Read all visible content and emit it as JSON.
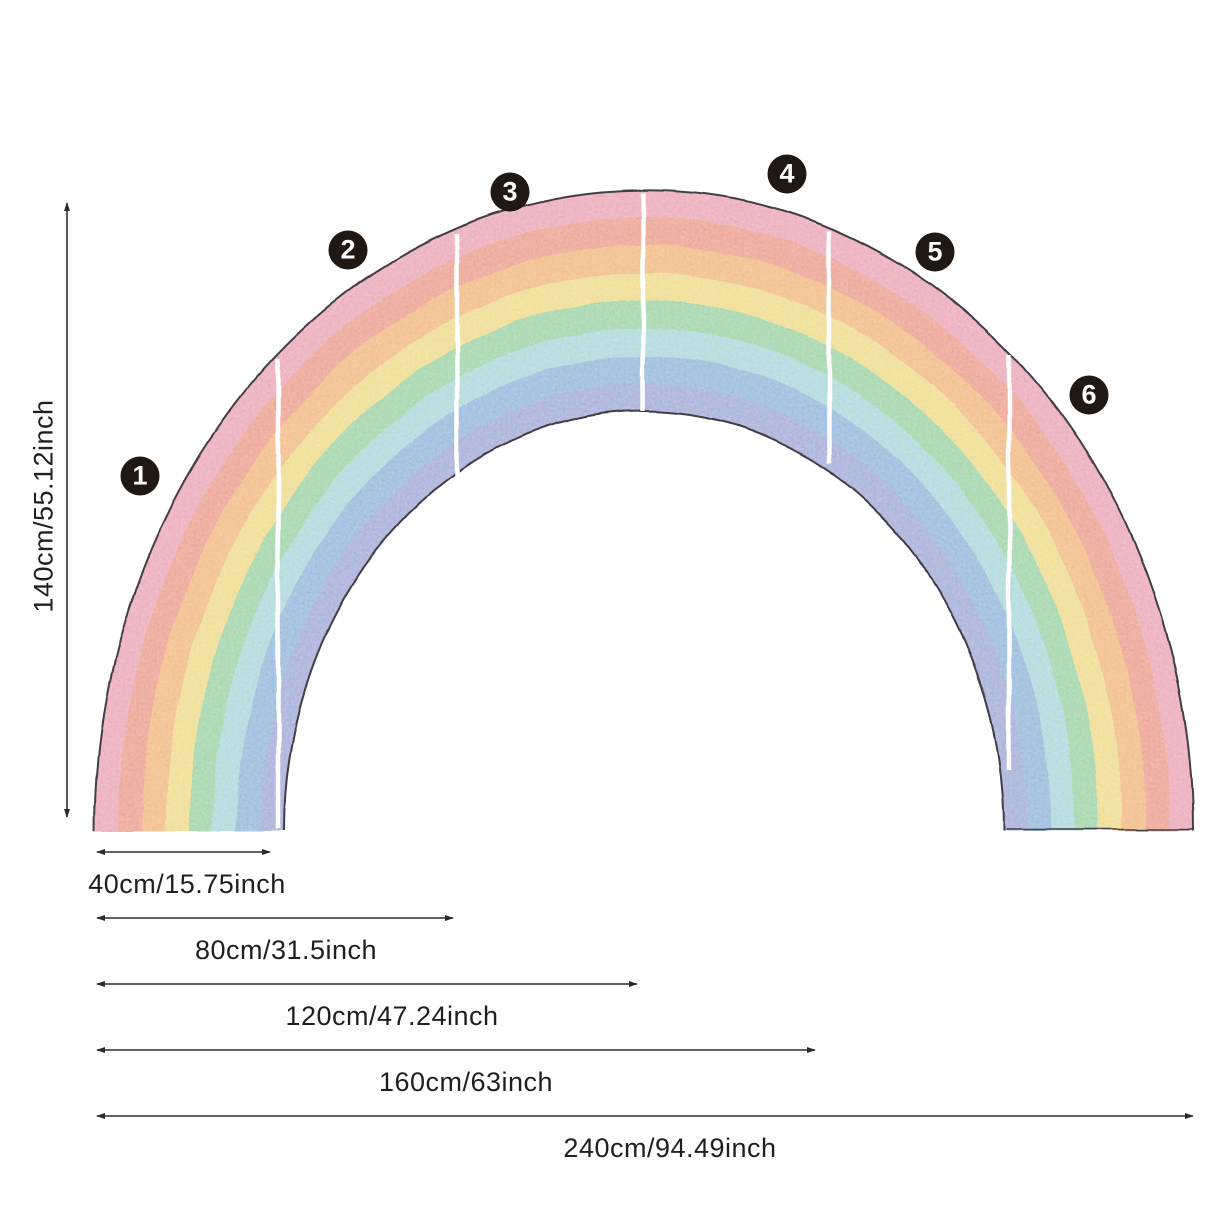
{
  "diagram": {
    "pieces": [
      {
        "number": "1"
      },
      {
        "number": "2"
      },
      {
        "number": "3"
      },
      {
        "number": "4"
      },
      {
        "number": "5"
      },
      {
        "number": "6"
      }
    ],
    "dimensions": {
      "height": "140cm/55.12inch",
      "widths": [
        "40cm/15.75inch",
        "80cm/31.5inch",
        "120cm/47.24inch",
        "160cm/63inch",
        "240cm/94.49inch"
      ]
    },
    "rainbow": {
      "band_colors_outer_to_inner": [
        "#e9a0b1",
        "#ea9886",
        "#f0b478",
        "#edd882",
        "#96d0a0",
        "#a5d4d7",
        "#8cb2d8",
        "#9ba5d4"
      ],
      "band_names_outer_to_inner": [
        "pink",
        "salmon",
        "orange",
        "yellow",
        "green",
        "teal",
        "blue",
        "periwinkle"
      ],
      "segment_count": "6"
    },
    "colors": {
      "background": "#ffffff",
      "outline": "#433c46",
      "divider": "#ffffff",
      "badge_bg": "#201813",
      "badge_text": "#ffffff",
      "dimension_line": "#2b2b2b",
      "label_text": "#1f1f1f"
    }
  }
}
